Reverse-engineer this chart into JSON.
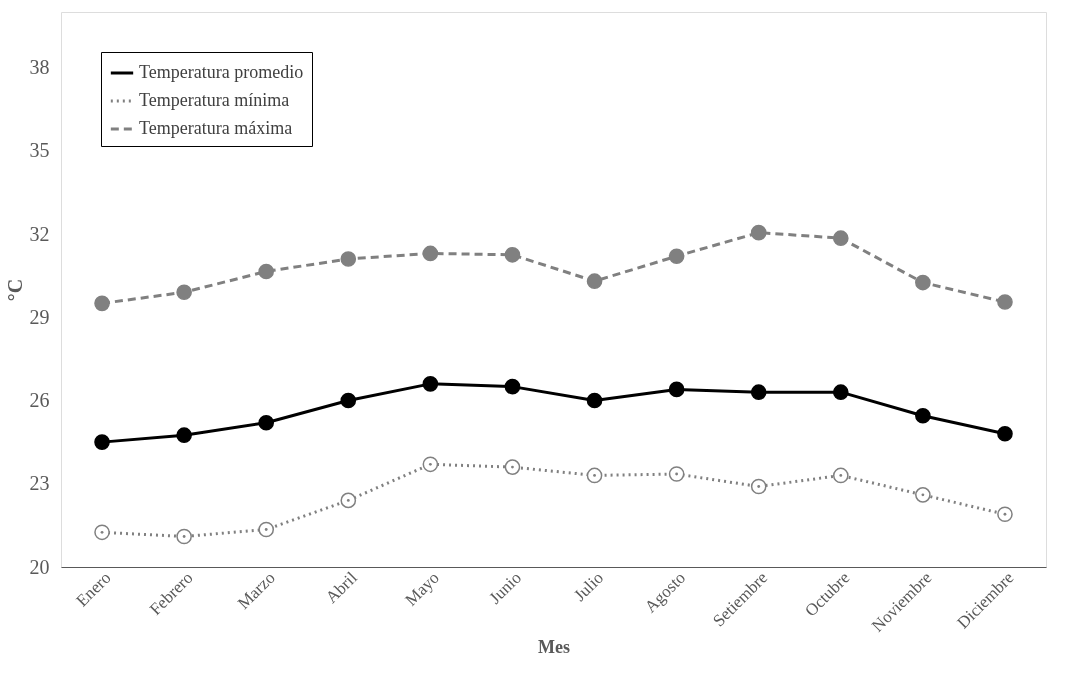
{
  "chart_data": {
    "type": "line",
    "xlabel": "Mes",
    "ylabel": "°C",
    "categories": [
      "Enero",
      "Febrero",
      "Marzo",
      "Abril",
      "Mayo",
      "Junio",
      "Julio",
      "Agosto",
      "Setiembre",
      "Octubre",
      "Noviembre",
      "Diciembre"
    ],
    "series": [
      {
        "name": "Temperatura promedio",
        "color": "#000000",
        "line_style": "solid",
        "marker": "circle",
        "values": [
          24.5,
          24.75,
          25.2,
          26.0,
          26.6,
          26.5,
          26.0,
          26.4,
          26.3,
          26.3,
          25.45,
          24.8
        ]
      },
      {
        "name": "Temperatura mínima",
        "color": "#808080",
        "line_style": "dotted",
        "marker": "circle",
        "values": [
          21.25,
          21.1,
          21.35,
          22.4,
          23.7,
          23.6,
          23.3,
          23.35,
          22.9,
          23.3,
          22.6,
          21.9
        ]
      },
      {
        "name": "Temperatura máxima",
        "color": "#808080",
        "line_style": "dashed",
        "marker": "circle",
        "values": [
          29.5,
          29.9,
          30.65,
          31.1,
          31.3,
          31.25,
          30.3,
          31.2,
          32.05,
          31.85,
          30.25,
          29.55
        ]
      }
    ],
    "ylim": [
      20,
      40
    ],
    "yticks": [
      20,
      23,
      26,
      29,
      32,
      35,
      38
    ],
    "grid": false,
    "legend": "top left"
  }
}
